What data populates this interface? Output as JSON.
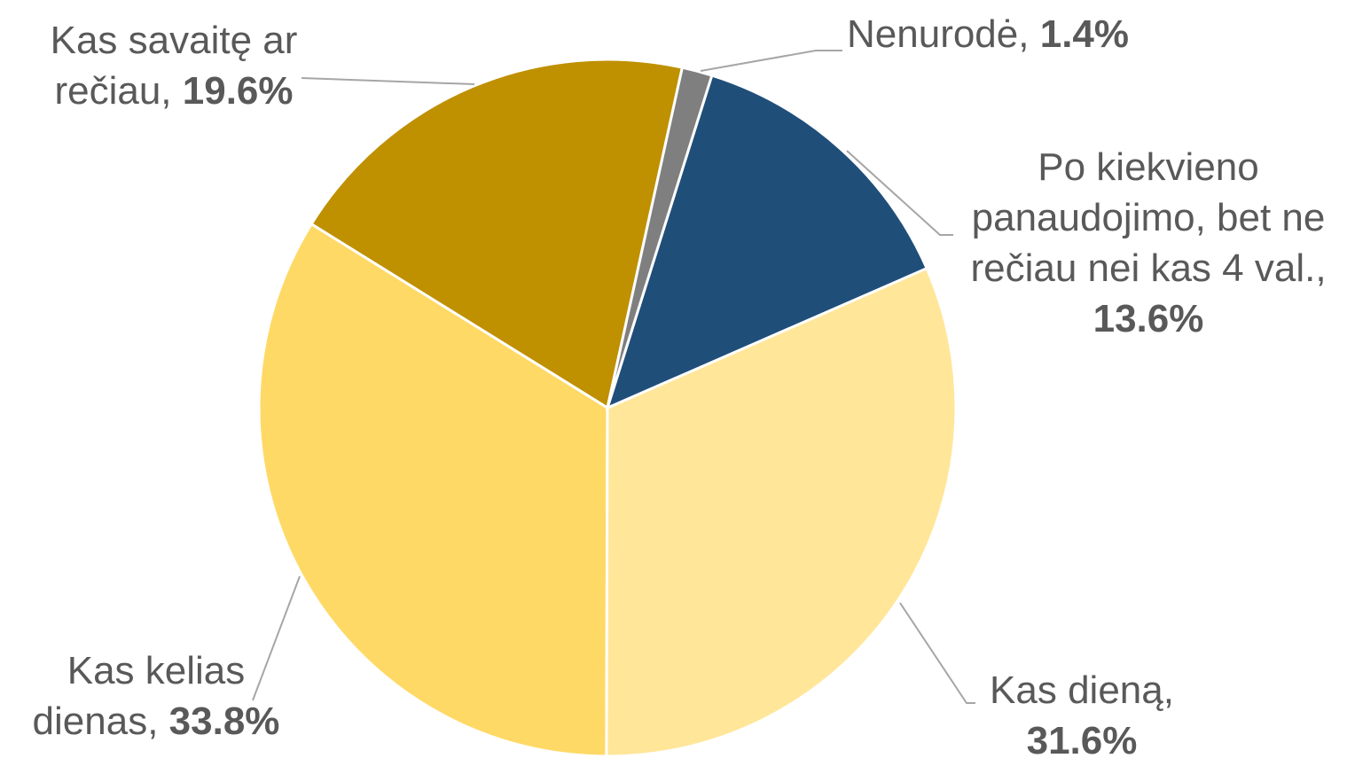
{
  "chart_data": {
    "type": "pie",
    "categories": [
      "Nenurodė,",
      "Po kiekvieno panaudojimo, bet ne rečiau nei kas 4 val.,",
      "Kas dieną,",
      "Kas kelias dienas,",
      "Kas savaitę ar rečiau,"
    ],
    "values": [
      1.4,
      13.6,
      31.6,
      33.8,
      19.6
    ],
    "value_labels": [
      "1.4%",
      "13.6%",
      "31.6%",
      "33.8%",
      "19.6%"
    ],
    "colors": [
      "#7f7f7f",
      "#1f4e79",
      "#ffe699",
      "#ffd966",
      "#bf9000"
    ],
    "start_angle": 12.4
  }
}
